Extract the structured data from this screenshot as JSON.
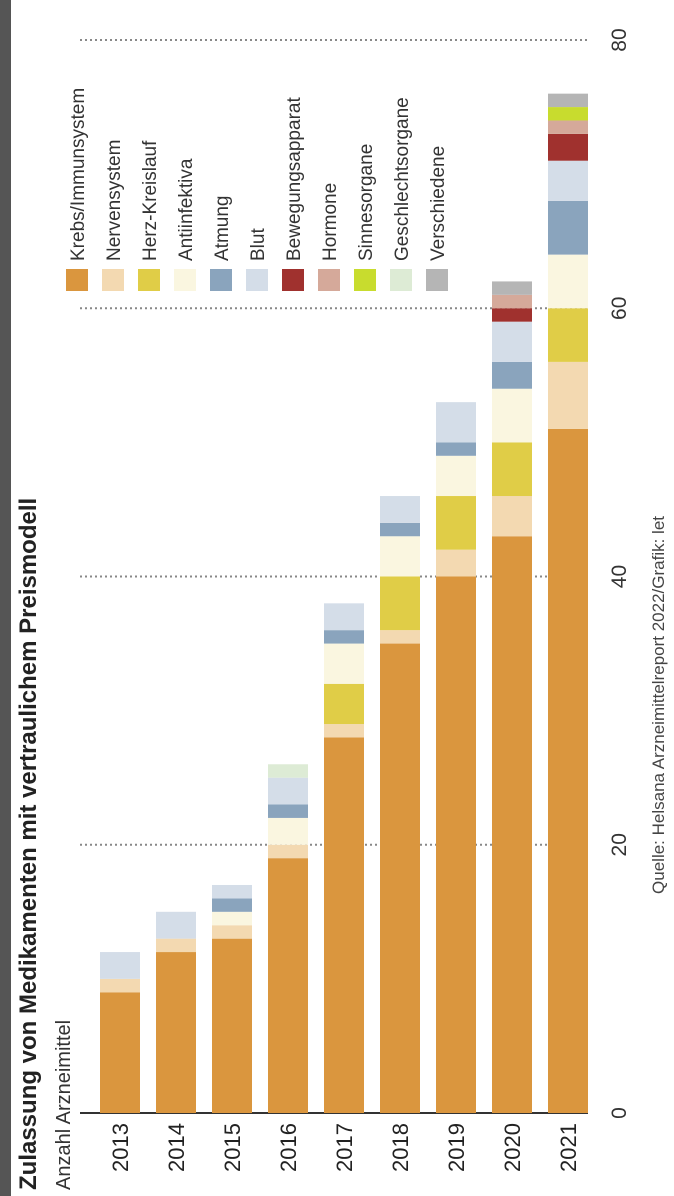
{
  "chart_data": {
    "type": "bar",
    "orientation": "horizontal",
    "stacked": true,
    "title": "Zulassung von Medikamenten mit vertraulichem Preismodell",
    "subtitle": "Anzahl Arzneimittel",
    "source": "Quelle: Helsana Arzneimittelreport 2022/Grafik: let",
    "categories": [
      "2013",
      "2014",
      "2015",
      "2016",
      "2017",
      "2018",
      "2019",
      "2020",
      "2021"
    ],
    "xlim": [
      0,
      80
    ],
    "xticks": [
      0,
      20,
      40,
      60,
      80
    ],
    "grid": true,
    "legend_position": "right",
    "series": [
      {
        "name": "Krebs/Immunsystem",
        "color": "#DA963E",
        "values": [
          9,
          12,
          13,
          19,
          28,
          35,
          40,
          43,
          51
        ]
      },
      {
        "name": "Nervensystem",
        "color": "#F3D9B1",
        "values": [
          1,
          1,
          1,
          1,
          1,
          1,
          2,
          3,
          5
        ]
      },
      {
        "name": "Herz-Kreislauf",
        "color": "#E0CD47",
        "values": [
          0,
          0,
          0,
          0,
          3,
          4,
          4,
          4,
          4
        ]
      },
      {
        "name": "Antiinfektiva",
        "color": "#FAF6E0",
        "values": [
          0,
          0,
          1,
          2,
          3,
          3,
          3,
          4,
          4
        ]
      },
      {
        "name": "Atmung",
        "color": "#8AA4BD",
        "values": [
          0,
          0,
          1,
          1,
          1,
          1,
          1,
          2,
          4
        ]
      },
      {
        "name": "Blut",
        "color": "#D4DDE8",
        "values": [
          2,
          2,
          1,
          2,
          2,
          2,
          3,
          3,
          3
        ]
      },
      {
        "name": "Bewegungsapparat",
        "color": "#A0312E",
        "values": [
          0,
          0,
          0,
          0,
          0,
          0,
          0,
          1,
          2
        ]
      },
      {
        "name": "Hormone",
        "color": "#D5A99A",
        "values": [
          0,
          0,
          0,
          0,
          0,
          0,
          0,
          1,
          1
        ]
      },
      {
        "name": "Sinnesorgane",
        "color": "#C8DC2E",
        "values": [
          0,
          0,
          0,
          0,
          0,
          0,
          0,
          0,
          1
        ]
      },
      {
        "name": "Geschlechtsorgane",
        "color": "#DDEBD5",
        "values": [
          0,
          0,
          0,
          1,
          0,
          0,
          0,
          0,
          0
        ]
      },
      {
        "name": "Verschiedene",
        "color": "#B5B5B5",
        "values": [
          0,
          0,
          0,
          0,
          0,
          0,
          0,
          1,
          1
        ]
      }
    ]
  }
}
